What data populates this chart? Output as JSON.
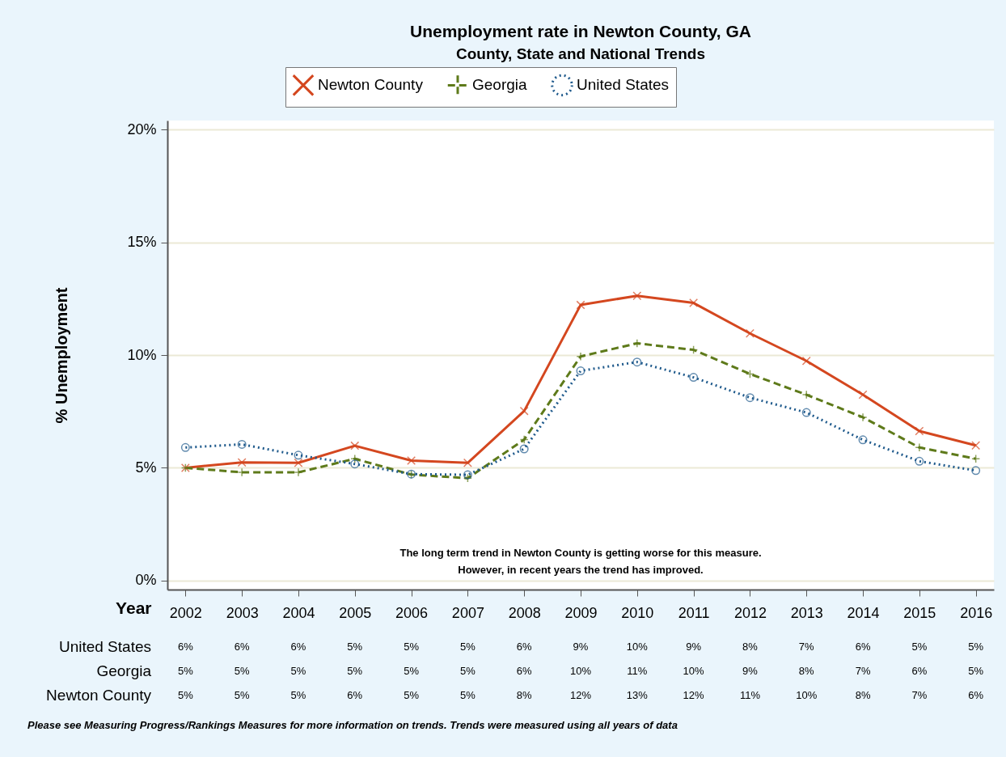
{
  "chart_data": {
    "type": "line",
    "title": "Unemployment rate in Newton County, GA",
    "subtitle": "County, State and National Trends",
    "xlabel": "Year",
    "ylabel": "% Unemployment",
    "categories": [
      "2002",
      "2003",
      "2004",
      "2005",
      "2006",
      "2007",
      "2008",
      "2009",
      "2010",
      "2011",
      "2012",
      "2013",
      "2014",
      "2015",
      "2016"
    ],
    "ylim": [
      -0.4,
      20.4
    ],
    "yticks": [
      {
        "value": 0,
        "label": "0%"
      },
      {
        "value": 5,
        "label": "5%"
      },
      {
        "value": 10,
        "label": "10%"
      },
      {
        "value": 15,
        "label": "15%"
      },
      {
        "value": 20,
        "label": "20%"
      }
    ],
    "grid": "y",
    "legend": "top",
    "series": [
      {
        "name": "Newton County",
        "color": "#d4471f",
        "marker": "cross",
        "line_style": "solid",
        "values": [
          5.0,
          5.24,
          5.22,
          5.98,
          5.32,
          5.22,
          7.52,
          12.22,
          12.63,
          12.31,
          10.96,
          9.74,
          8.24,
          6.63,
          5.99
        ],
        "value_labels": [
          "5%",
          "5%",
          "5%",
          "6%",
          "5%",
          "5%",
          "8%",
          "12%",
          "13%",
          "12%",
          "11%",
          "10%",
          "8%",
          "7%",
          "6%"
        ]
      },
      {
        "name": "Georgia",
        "color": "#5e7a1a",
        "marker": "plus",
        "line_style": "dashed",
        "values": [
          5.0,
          4.8,
          4.8,
          5.4,
          4.7,
          4.54,
          6.25,
          9.94,
          10.52,
          10.23,
          9.16,
          8.24,
          7.24,
          5.9,
          5.4
        ],
        "value_labels": [
          "5%",
          "5%",
          "5%",
          "5%",
          "5%",
          "5%",
          "6%",
          "10%",
          "11%",
          "10%",
          "9%",
          "8%",
          "7%",
          "6%",
          "5%"
        ]
      },
      {
        "name": "United States",
        "color": "#1f5a8c",
        "marker": "circle",
        "line_style": "dotted",
        "values": [
          5.9,
          6.04,
          5.56,
          5.17,
          4.72,
          4.69,
          5.84,
          9.3,
          9.69,
          9.01,
          8.11,
          7.45,
          6.24,
          5.29,
          4.88
        ],
        "value_labels": [
          "6%",
          "6%",
          "6%",
          "5%",
          "5%",
          "5%",
          "6%",
          "9%",
          "10%",
          "9%",
          "8%",
          "7%",
          "6%",
          "5%",
          "5%"
        ]
      }
    ],
    "annotations": [
      "The long term trend in Newton County is getting worse for this measure.",
      "However, in recent years the trend has improved.",
      "Please see Measuring Progress/Rankings Measures for more information on trends. Trends were measured using all years of data"
    ]
  }
}
